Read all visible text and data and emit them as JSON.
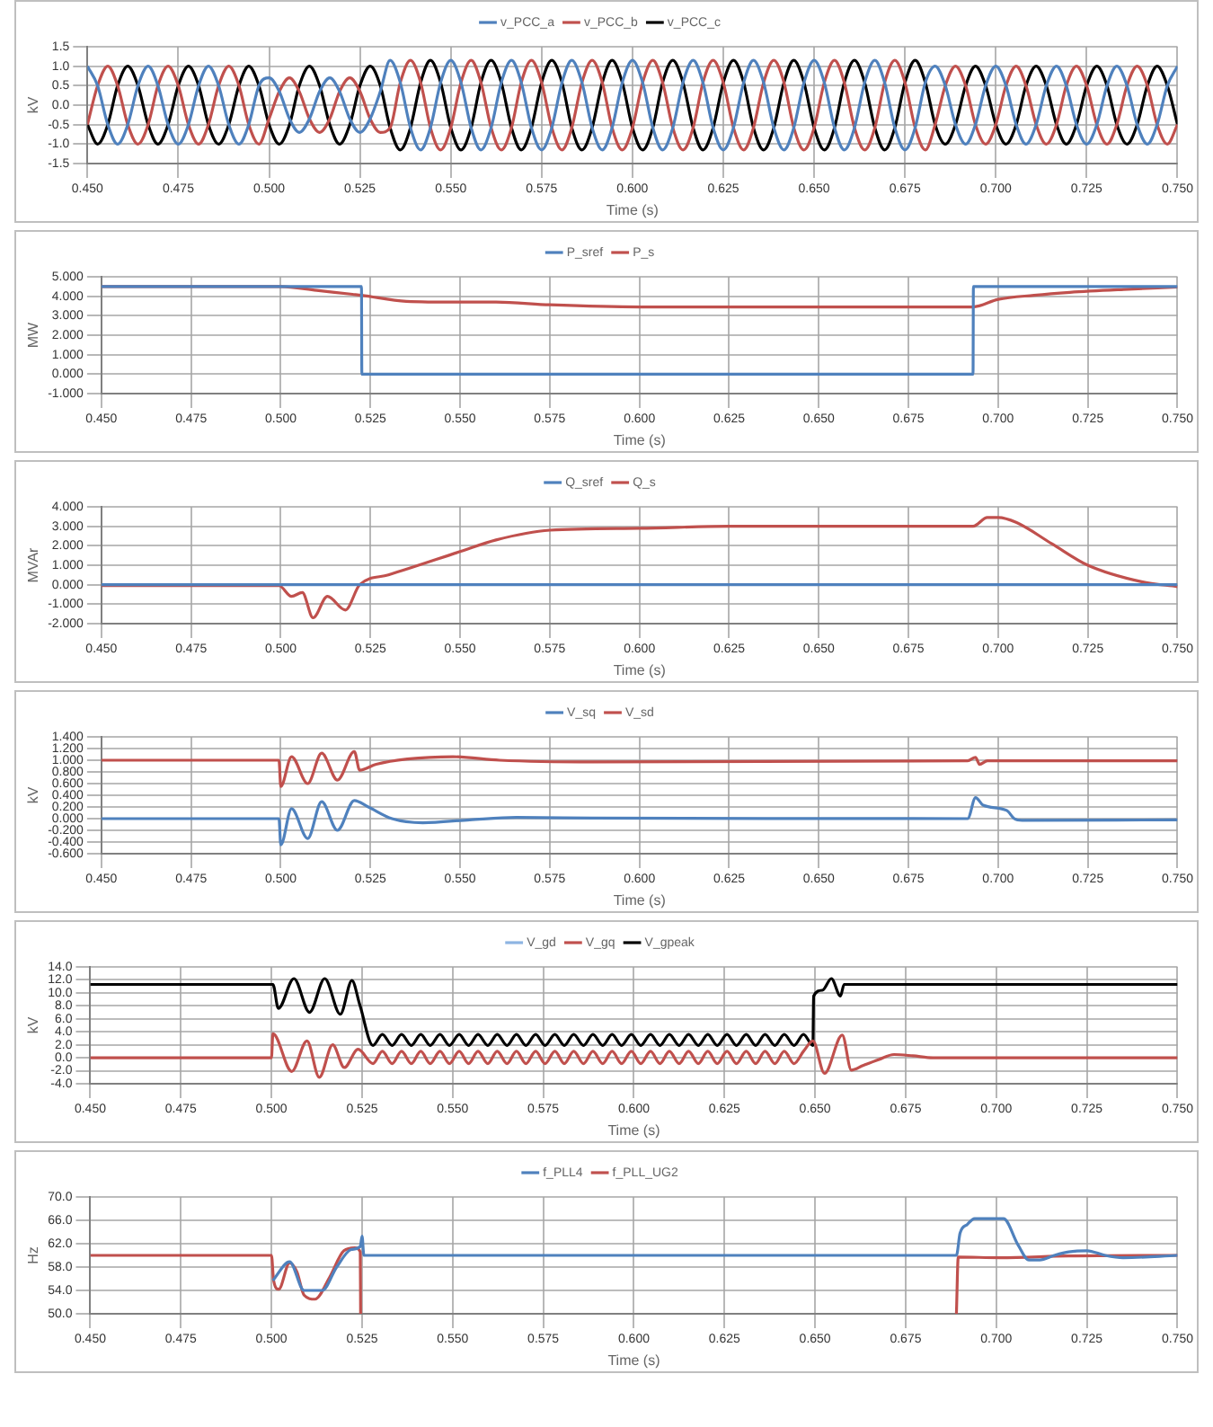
{
  "chart_data": [
    {
      "type": "line",
      "xlabel": "Time (s)",
      "ylabel": "kV",
      "legend": "top",
      "grid": true,
      "xlim": [
        0.45,
        0.75
      ],
      "xticks": [
        {
          "value": 0.45,
          "label": "0.450"
        },
        {
          "value": 0.475,
          "label": "0.475"
        },
        {
          "value": 0.5,
          "label": "0.500"
        },
        {
          "value": 0.525,
          "label": "0.525"
        },
        {
          "value": 0.55,
          "label": "0.550"
        },
        {
          "value": 0.575,
          "label": "0.575"
        },
        {
          "value": 0.6,
          "label": "0.600"
        },
        {
          "value": 0.625,
          "label": "0.625"
        },
        {
          "value": 0.65,
          "label": "0.650"
        },
        {
          "value": 0.675,
          "label": "0.675"
        },
        {
          "value": 0.7,
          "label": "0.700"
        },
        {
          "value": 0.725,
          "label": "0.725"
        },
        {
          "value": 0.75,
          "label": "0.750"
        }
      ],
      "ylim": [
        -1.5,
        1.5
      ],
      "yticks": [
        -1.5,
        {
          "value": -1,
          "label": "-1.0"
        },
        -0.5,
        {
          "value": 0,
          "label": "0.0"
        },
        0.5,
        {
          "value": 1,
          "label": "1.0"
        },
        1.5
      ],
      "x": [
        0.45,
        0.4528,
        0.4556,
        0.4583,
        0.4611,
        0.4639,
        0.4667,
        0.4694,
        0.4722,
        0.475,
        0.4778,
        0.4806,
        0.4833,
        0.4861,
        0.4889,
        0.4917,
        0.4944,
        0.4972,
        0.5,
        0.5028,
        0.5056,
        0.5083,
        0.5111,
        0.5139,
        0.5167,
        0.5194,
        0.5222,
        0.525,
        0.5278,
        0.5306,
        0.5333,
        0.5361,
        0.5389,
        0.5417,
        0.5444,
        0.5472,
        0.55,
        0.5528,
        0.5556,
        0.5583,
        0.5611,
        0.5639,
        0.5667,
        0.5694,
        0.5722,
        0.575,
        0.5778,
        0.5806,
        0.5833,
        0.5861,
        0.5889,
        0.5917,
        0.5944,
        0.5972,
        0.6,
        0.6028,
        0.6056,
        0.6083,
        0.6111,
        0.6139,
        0.6167,
        0.6194,
        0.6222,
        0.625,
        0.6278,
        0.6306,
        0.6333,
        0.6361,
        0.6389,
        0.6417,
        0.6444,
        0.6472,
        0.65,
        0.6528,
        0.6556,
        0.6583,
        0.6611,
        0.6639,
        0.6667,
        0.6694,
        0.6722,
        0.675,
        0.6778,
        0.6806,
        0.6833,
        0.6861,
        0.6889,
        0.6917,
        0.6944,
        0.6972,
        0.7,
        0.7028,
        0.7056,
        0.7083,
        0.7111,
        0.7139,
        0.7167,
        0.7194,
        0.7222,
        0.725,
        0.7278,
        0.7306,
        0.7333,
        0.7361,
        0.7389,
        0.7417,
        0.7444,
        0.7472,
        0.75
      ],
      "series": [
        {
          "name": "v_PCC_a",
          "color": "#4f81bd",
          "values": [
            1,
            0.5,
            -0.5,
            -1,
            -0.5,
            0.5,
            1,
            0.5,
            -0.5,
            -1,
            -0.5,
            0.5,
            1,
            0.5,
            -0.5,
            -1,
            -0.5,
            0.5,
            0.7,
            0.35,
            -0.35,
            -0.7,
            -0.35,
            0.35,
            0.7,
            0.35,
            -0.35,
            -0.7,
            -0.35,
            0.35,
            1.15,
            0.58,
            -0.58,
            -1.15,
            -0.58,
            0.58,
            1.15,
            0.58,
            -0.58,
            -1.15,
            -0.58,
            0.58,
            1.15,
            0.58,
            -0.58,
            -1.15,
            -0.58,
            0.58,
            1.15,
            0.58,
            -0.58,
            -1.15,
            -0.58,
            0.58,
            1.15,
            0.58,
            -0.58,
            -1.15,
            -0.58,
            0.58,
            1.15,
            0.58,
            -0.58,
            -1.15,
            -0.58,
            0.58,
            1.15,
            0.58,
            -0.58,
            -1.15,
            -0.58,
            0.58,
            1.15,
            0.58,
            -0.58,
            -1.15,
            -0.58,
            0.58,
            1.15,
            0.58,
            -0.58,
            -1.15,
            -0.58,
            0.58,
            1,
            0.5,
            -0.5,
            -1,
            -0.5,
            0.5,
            1,
            0.5,
            -0.5,
            -1,
            -0.5,
            0.5,
            1,
            0.5,
            -0.5,
            -1,
            -0.5,
            0.5,
            1,
            0.5,
            -0.5,
            -1,
            -0.5,
            0.5,
            1
          ]
        },
        {
          "name": "v_PCC_b",
          "color": "#c0504d",
          "values": [
            -0.5,
            0.5,
            1,
            0.5,
            -0.5,
            -1,
            -0.5,
            0.5,
            1,
            0.5,
            -0.5,
            -1,
            -0.5,
            0.5,
            1,
            0.5,
            -0.5,
            -1,
            -0.35,
            0.35,
            0.7,
            0.35,
            -0.35,
            -0.7,
            -0.35,
            0.35,
            0.7,
            0.35,
            -0.35,
            -0.7,
            -0.58,
            0.58,
            1.15,
            0.58,
            -0.58,
            -1.15,
            -0.58,
            0.58,
            1.15,
            0.58,
            -0.58,
            -1.15,
            -0.58,
            0.58,
            1.15,
            0.58,
            -0.58,
            -1.15,
            -0.58,
            0.58,
            1.15,
            0.58,
            -0.58,
            -1.15,
            -0.58,
            0.58,
            1.15,
            0.58,
            -0.58,
            -1.15,
            -0.58,
            0.58,
            1.15,
            0.58,
            -0.58,
            -1.15,
            -0.58,
            0.58,
            1.15,
            0.58,
            -0.58,
            -1.15,
            -0.58,
            0.58,
            1.15,
            0.58,
            -0.58,
            -1.15,
            -0.58,
            0.58,
            1.15,
            0.58,
            -0.58,
            -1.15,
            -0.5,
            0.5,
            1,
            0.5,
            -0.5,
            -1,
            -0.5,
            0.5,
            1,
            0.5,
            -0.5,
            -1,
            -0.5,
            0.5,
            1,
            0.5,
            -0.5,
            -1,
            -0.5,
            0.5,
            1,
            0.5,
            -0.5,
            -1,
            -0.5
          ]
        },
        {
          "name": "v_PCC_c",
          "color": "#000000",
          "values": [
            -0.5,
            -1,
            -0.5,
            0.5,
            1,
            0.5,
            -0.5,
            -1,
            -0.5,
            0.5,
            1,
            0.5,
            -0.5,
            -1,
            -0.5,
            0.5,
            1,
            0.5,
            -0.5,
            -1,
            -0.5,
            0.5,
            1,
            0.5,
            -0.5,
            -1,
            -0.5,
            0.5,
            1,
            0.5,
            -0.58,
            -1.15,
            -0.58,
            0.58,
            1.15,
            0.58,
            -0.58,
            -1.15,
            -0.58,
            0.58,
            1.15,
            0.58,
            -0.58,
            -1.15,
            -0.58,
            0.58,
            1.15,
            0.58,
            -0.58,
            -1.15,
            -0.58,
            0.58,
            1.15,
            0.58,
            -0.58,
            -1.15,
            -0.58,
            0.58,
            1.15,
            0.58,
            -0.58,
            -1.15,
            -0.58,
            0.58,
            1.15,
            0.58,
            -0.58,
            -1.15,
            -0.58,
            0.58,
            1.15,
            0.58,
            -0.58,
            -1.15,
            -0.58,
            0.58,
            1.15,
            0.58,
            -0.58,
            -1.15,
            -0.58,
            0.58,
            1.15,
            0.58,
            -0.5,
            -1,
            -0.5,
            0.5,
            1,
            0.5,
            -0.5,
            -1,
            -0.5,
            0.5,
            1,
            0.5,
            -0.5,
            -1,
            -0.5,
            0.5,
            1,
            0.5,
            -0.5,
            -1,
            -0.5,
            0.5,
            1,
            0.5,
            -0.5
          ]
        }
      ]
    },
    {
      "type": "line",
      "xlabel": "Time (s)",
      "ylabel": "MW",
      "legend": "top",
      "grid": true,
      "xlim": [
        0.45,
        0.75
      ],
      "xticks": [
        {
          "value": 0.45,
          "label": "0.450"
        },
        {
          "value": 0.475,
          "label": "0.475"
        },
        {
          "value": 0.5,
          "label": "0.500"
        },
        {
          "value": 0.525,
          "label": "0.525"
        },
        {
          "value": 0.55,
          "label": "0.550"
        },
        {
          "value": 0.575,
          "label": "0.575"
        },
        {
          "value": 0.6,
          "label": "0.600"
        },
        {
          "value": 0.625,
          "label": "0.625"
        },
        {
          "value": 0.65,
          "label": "0.650"
        },
        {
          "value": 0.675,
          "label": "0.675"
        },
        {
          "value": 0.7,
          "label": "0.700"
        },
        {
          "value": 0.725,
          "label": "0.725"
        },
        {
          "value": 0.75,
          "label": "0.750"
        }
      ],
      "ylim": [
        -1,
        5
      ],
      "yticks": [
        {
          "value": -1,
          "label": "-1.000"
        },
        {
          "value": 0,
          "label": "0.000"
        },
        {
          "value": 1,
          "label": "1.000"
        },
        {
          "value": 2,
          "label": "2.000"
        },
        {
          "value": 3,
          "label": "3.000"
        },
        {
          "value": 4,
          "label": "4.000"
        },
        {
          "value": 5,
          "label": "5.000"
        }
      ],
      "series": [
        {
          "name": "P_sref",
          "color": "#4f81bd",
          "x": [
            0.45,
            0.5225,
            0.5226,
            0.693,
            0.6931,
            0.75
          ],
          "values": [
            4.5,
            4.5,
            0,
            0,
            4.5,
            4.5
          ]
        },
        {
          "name": "P_s",
          "color": "#c0504d",
          "x": [
            0.45,
            0.5,
            0.51,
            0.52,
            0.5225,
            0.535,
            0.55,
            0.56,
            0.575,
            0.6,
            0.65,
            0.69,
            0.693,
            0.7,
            0.71,
            0.72,
            0.735,
            0.75
          ],
          "values": [
            4.5,
            4.5,
            4.3,
            4.1,
            4.05,
            3.74,
            3.7,
            3.7,
            3.56,
            3.45,
            3.45,
            3.45,
            3.45,
            3.84,
            4.05,
            4.2,
            4.35,
            4.47
          ]
        }
      ]
    },
    {
      "type": "line",
      "xlabel": "Time (s)",
      "ylabel": "MVAr",
      "legend": "top",
      "grid": true,
      "xlim": [
        0.45,
        0.75
      ],
      "xticks": [
        {
          "value": 0.45,
          "label": "0.450"
        },
        {
          "value": 0.475,
          "label": "0.475"
        },
        {
          "value": 0.5,
          "label": "0.500"
        },
        {
          "value": 0.525,
          "label": "0.525"
        },
        {
          "value": 0.55,
          "label": "0.550"
        },
        {
          "value": 0.575,
          "label": "0.575"
        },
        {
          "value": 0.6,
          "label": "0.600"
        },
        {
          "value": 0.625,
          "label": "0.625"
        },
        {
          "value": 0.65,
          "label": "0.650"
        },
        {
          "value": 0.675,
          "label": "0.675"
        },
        {
          "value": 0.7,
          "label": "0.700"
        },
        {
          "value": 0.725,
          "label": "0.725"
        },
        {
          "value": 0.75,
          "label": "0.750"
        }
      ],
      "ylim": [
        -2,
        4
      ],
      "yticks": [
        {
          "value": -2,
          "label": "-2.000"
        },
        {
          "value": -1,
          "label": "-1.000"
        },
        {
          "value": 0,
          "label": "0.000"
        },
        {
          "value": 1,
          "label": "1.000"
        },
        {
          "value": 2,
          "label": "2.000"
        },
        {
          "value": 3,
          "label": "3.000"
        },
        {
          "value": 4,
          "label": "4.000"
        }
      ],
      "series": [
        {
          "name": "Q_sref",
          "color": "#4f81bd",
          "x": [
            0.45,
            0.75
          ],
          "values": [
            0,
            0
          ]
        },
        {
          "name": "Q_s",
          "color": "#c0504d",
          "x": [
            0.45,
            0.4995,
            0.503,
            0.506,
            0.509,
            0.513,
            0.518,
            0.522,
            0.53,
            0.55,
            0.56,
            0.575,
            0.6,
            0.625,
            0.65,
            0.69,
            0.693,
            0.697,
            0.7,
            0.705,
            0.715,
            0.725,
            0.74,
            0.75
          ],
          "values": [
            -0.05,
            -0.05,
            -0.6,
            -0.4,
            -1.7,
            -0.6,
            -1.3,
            0,
            0.5,
            1.7,
            2.3,
            2.8,
            2.9,
            3,
            3,
            3,
            3,
            3.45,
            3.45,
            3.2,
            2.1,
            1,
            0.15,
            -0.1
          ]
        }
      ]
    },
    {
      "type": "line",
      "xlabel": "Time (s)",
      "ylabel": "kV",
      "legend": "top",
      "grid": true,
      "xlim": [
        0.45,
        0.75
      ],
      "xticks": [
        {
          "value": 0.45,
          "label": "0.450"
        },
        {
          "value": 0.475,
          "label": "0.475"
        },
        {
          "value": 0.5,
          "label": "0.500"
        },
        {
          "value": 0.525,
          "label": "0.525"
        },
        {
          "value": 0.55,
          "label": "0.550"
        },
        {
          "value": 0.575,
          "label": "0.575"
        },
        {
          "value": 0.6,
          "label": "0.600"
        },
        {
          "value": 0.625,
          "label": "0.625"
        },
        {
          "value": 0.65,
          "label": "0.650"
        },
        {
          "value": 0.675,
          "label": "0.675"
        },
        {
          "value": 0.7,
          "label": "0.700"
        },
        {
          "value": 0.725,
          "label": "0.725"
        },
        {
          "value": 0.75,
          "label": "0.750"
        }
      ],
      "ylim": [
        -0.6,
        1.4
      ],
      "yticks": [
        {
          "value": -0.6,
          "label": "-0.600"
        },
        {
          "value": -0.4,
          "label": "-0.400"
        },
        {
          "value": -0.2,
          "label": "-0.200"
        },
        {
          "value": 0,
          "label": "0.000"
        },
        {
          "value": 0.2,
          "label": "0.200"
        },
        {
          "value": 0.4,
          "label": "0.400"
        },
        {
          "value": 0.6,
          "label": "0.600"
        },
        {
          "value": 0.8,
          "label": "0.800"
        },
        {
          "value": 1,
          "label": "1.000"
        },
        {
          "value": 1.2,
          "label": "1.200"
        },
        {
          "value": 1.4,
          "label": "1.400"
        }
      ],
      "series": [
        {
          "name": "V_sq",
          "color": "#4f81bd",
          "x": [
            0.45,
            0.4995,
            0.5,
            0.503,
            0.5075,
            0.5114,
            0.5158,
            0.5205,
            0.5244,
            0.531,
            0.5396,
            0.5527,
            0.5657,
            0.587,
            0.6915,
            0.6937,
            0.6958,
            0.7024,
            0.7045,
            0.7067,
            0.75
          ],
          "values": [
            0,
            0,
            -0.45,
            0.17,
            -0.34,
            0.29,
            -0.2,
            0.31,
            0.2,
            0,
            -0.07,
            -0.02,
            0.02,
            0.01,
            0,
            0.36,
            0.23,
            0.14,
            0,
            -0.03,
            -0.02
          ]
        },
        {
          "name": "V_sd",
          "color": "#c0504d",
          "x": [
            0.45,
            0.4995,
            0.5,
            0.503,
            0.5075,
            0.5114,
            0.5158,
            0.5205,
            0.522,
            0.5266,
            0.5353,
            0.548,
            0.561,
            0.587,
            0.6915,
            0.6937,
            0.6948,
            0.697,
            0.75
          ],
          "values": [
            1,
            1,
            0.55,
            1.06,
            0.6,
            1.12,
            0.66,
            1.15,
            0.83,
            0.93,
            1.02,
            1.06,
            1,
            0.97,
            0.99,
            1.05,
            0.93,
            0.99,
            0.99
          ]
        }
      ]
    },
    {
      "type": "line",
      "xlabel": "Time (s)",
      "ylabel": "kV",
      "legend": "top",
      "grid": true,
      "xlim": [
        0.45,
        0.75
      ],
      "xticks": [
        {
          "value": 0.45,
          "label": "0.450"
        },
        {
          "value": 0.475,
          "label": "0.475"
        },
        {
          "value": 0.5,
          "label": "0.500"
        },
        {
          "value": 0.525,
          "label": "0.525"
        },
        {
          "value": 0.55,
          "label": "0.550"
        },
        {
          "value": 0.575,
          "label": "0.575"
        },
        {
          "value": 0.6,
          "label": "0.600"
        },
        {
          "value": 0.625,
          "label": "0.625"
        },
        {
          "value": 0.65,
          "label": "0.650"
        },
        {
          "value": 0.675,
          "label": "0.675"
        },
        {
          "value": 0.7,
          "label": "0.700"
        },
        {
          "value": 0.725,
          "label": "0.725"
        },
        {
          "value": 0.75,
          "label": "0.750"
        }
      ],
      "ylim": [
        -4,
        14
      ],
      "yticks": [
        {
          "value": -4,
          "label": "-4.0"
        },
        {
          "value": -2,
          "label": "-2.0"
        },
        {
          "value": 0,
          "label": "0.0"
        },
        {
          "value": 2,
          "label": "2.0"
        },
        {
          "value": 4,
          "label": "4.0"
        },
        {
          "value": 6,
          "label": "6.0"
        },
        {
          "value": 8,
          "label": "8.0"
        },
        {
          "value": 10,
          "label": "10.0"
        },
        {
          "value": 12,
          "label": "12.0"
        },
        {
          "value": 14,
          "label": "14.0"
        }
      ],
      "series": [
        {
          "name": "V_gd",
          "color": "#8db4e2"
        },
        {
          "name": "V_gq",
          "color": "#c0504d",
          "x": [
            0.45,
            0.5,
            0.5004,
            0.5056,
            0.5098,
            0.5132,
            0.5169,
            0.5201,
            0.5239,
            0.528,
            0.5306,
            0.5333,
            0.5359,
            0.5386,
            0.5412,
            0.5438,
            0.5465,
            0.5491,
            0.5518,
            0.5544,
            0.557,
            0.5597,
            0.5623,
            0.565,
            0.5676,
            0.5702,
            0.5729,
            0.5755,
            0.5782,
            0.5808,
            0.5834,
            0.5861,
            0.5887,
            0.5914,
            0.594,
            0.5966,
            0.5993,
            0.6019,
            0.6046,
            0.6072,
            0.6098,
            0.6125,
            0.6151,
            0.6178,
            0.6204,
            0.623,
            0.6257,
            0.6283,
            0.631,
            0.6336,
            0.6362,
            0.6389,
            0.6415,
            0.6442,
            0.6468,
            0.6494,
            0.6526,
            0.6575,
            0.66,
            0.6632,
            0.6675,
            0.6718,
            0.677,
            0.6825,
            0.75
          ],
          "values": [
            0,
            0,
            3.7,
            -2.1,
            2.6,
            -3,
            2,
            -1.5,
            1.3,
            -0.9,
            1,
            -0.9,
            1,
            -0.9,
            1,
            -0.9,
            1,
            -0.9,
            1,
            -0.9,
            1,
            -0.9,
            1,
            -0.9,
            1,
            -0.9,
            1,
            -0.9,
            1,
            -0.9,
            1,
            -0.9,
            1,
            -0.9,
            1,
            -0.9,
            1,
            -0.9,
            1,
            -0.9,
            1,
            -0.9,
            1,
            -0.9,
            1,
            -0.9,
            1,
            -0.9,
            1,
            -0.9,
            1,
            -0.9,
            1,
            -0.9,
            1,
            2.6,
            -2.4,
            3.5,
            -1.9,
            -1.2,
            -0.3,
            0.5,
            0.3,
            0,
            0
          ]
        },
        {
          "name": "V_gpeak",
          "color": "#000000",
          "x": [
            0.45,
            0.5004,
            0.5019,
            0.5062,
            0.5105,
            0.5147,
            0.519,
            0.5222,
            0.5244,
            0.528,
            0.5306,
            0.5333,
            0.5359,
            0.5386,
            0.5412,
            0.5438,
            0.5465,
            0.5491,
            0.5518,
            0.5544,
            0.557,
            0.5597,
            0.5623,
            0.565,
            0.5676,
            0.5702,
            0.5729,
            0.5755,
            0.5782,
            0.5808,
            0.5834,
            0.5861,
            0.5887,
            0.5914,
            0.594,
            0.5966,
            0.5993,
            0.6019,
            0.6046,
            0.6072,
            0.6098,
            0.6125,
            0.6151,
            0.6178,
            0.6204,
            0.623,
            0.6257,
            0.6283,
            0.631,
            0.6336,
            0.6362,
            0.6389,
            0.6415,
            0.6442,
            0.6468,
            0.6494,
            0.6496,
            0.652,
            0.6545,
            0.657,
            0.658,
            0.75
          ],
          "values": [
            11.3,
            11.3,
            7.6,
            12.2,
            7,
            12.2,
            6.7,
            11.9,
            8.1,
            1.9,
            3.6,
            1.9,
            3.6,
            1.9,
            3.6,
            1.9,
            3.6,
            1.9,
            3.6,
            1.9,
            3.6,
            1.9,
            3.6,
            1.9,
            3.6,
            1.9,
            3.6,
            1.9,
            3.6,
            1.9,
            3.6,
            1.9,
            3.6,
            1.9,
            3.6,
            1.9,
            3.6,
            1.9,
            3.6,
            1.9,
            3.6,
            1.9,
            3.6,
            1.9,
            3.6,
            1.9,
            3.6,
            1.9,
            3.6,
            1.9,
            3.6,
            1.9,
            3.6,
            1.9,
            3.6,
            1.9,
            9.5,
            10.4,
            12.2,
            9.5,
            11.3,
            11.3
          ]
        }
      ]
    },
    {
      "type": "line",
      "xlabel": "Time (s)",
      "ylabel": "Hz",
      "legend": "top",
      "grid": true,
      "xlim": [
        0.45,
        0.75
      ],
      "xticks": [
        {
          "value": 0.45,
          "label": "0.450"
        },
        {
          "value": 0.475,
          "label": "0.475"
        },
        {
          "value": 0.5,
          "label": "0.500"
        },
        {
          "value": 0.525,
          "label": "0.525"
        },
        {
          "value": 0.55,
          "label": "0.550"
        },
        {
          "value": 0.575,
          "label": "0.575"
        },
        {
          "value": 0.6,
          "label": "0.600"
        },
        {
          "value": 0.625,
          "label": "0.625"
        },
        {
          "value": 0.65,
          "label": "0.650"
        },
        {
          "value": 0.675,
          "label": "0.675"
        },
        {
          "value": 0.7,
          "label": "0.700"
        },
        {
          "value": 0.725,
          "label": "0.725"
        },
        {
          "value": 0.75,
          "label": "0.750"
        }
      ],
      "ylim": [
        50,
        70
      ],
      "yticks": [
        {
          "value": 50,
          "label": "50.0"
        },
        {
          "value": 54,
          "label": "54.0"
        },
        {
          "value": 58,
          "label": "58.0"
        },
        {
          "value": 62,
          "label": "62.0"
        },
        {
          "value": 66,
          "label": "66.0"
        },
        {
          "value": 70,
          "label": "70.0"
        }
      ],
      "series": [
        {
          "name": "f_PLL4",
          "color": "#4f81bd",
          "x": [
            0.5004,
            0.505,
            0.509,
            0.511,
            0.514,
            0.518,
            0.522,
            0.5245,
            0.525,
            0.5255,
            0.689,
            0.69,
            0.692,
            0.694,
            0.702,
            0.706,
            0.709,
            0.712,
            0.716,
            0.72,
            0.725,
            0.73,
            0.735,
            0.75
          ],
          "values": [
            55.7,
            58.9,
            54,
            54,
            54,
            58,
            61,
            61.5,
            63.3,
            60,
            60,
            63.8,
            65.3,
            66.3,
            66.3,
            61.8,
            59.2,
            59.2,
            60,
            60.6,
            60.8,
            60,
            59.6,
            60
          ]
        },
        {
          "name": "f_PLL_UG2",
          "color": "#c0504d",
          "x": [
            0.45,
            0.5,
            0.5006,
            0.502,
            0.505,
            0.507,
            0.509,
            0.512,
            0.516,
            0.52,
            0.523,
            0.5245,
            0.5246,
            0.6,
            0.689,
            0.6895,
            0.701,
            0.72,
            0.75
          ],
          "values": [
            60,
            60,
            55.7,
            54.2,
            58.7,
            57.2,
            53.2,
            52.5,
            56.2,
            60.8,
            61.3,
            60.6,
            50,
            null,
            50,
            59.7,
            59.6,
            59.9,
            60
          ]
        }
      ]
    }
  ]
}
